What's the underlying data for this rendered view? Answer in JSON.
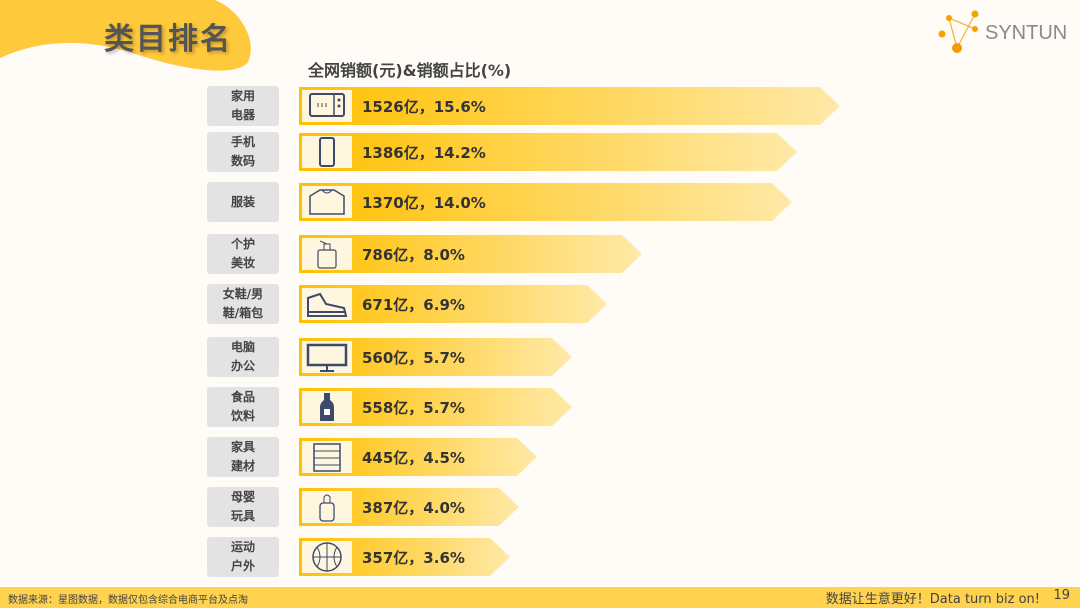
{
  "header": {
    "title": "类目排名",
    "logo_text": "SYNTUN"
  },
  "chart_data": {
    "type": "bar",
    "orientation": "horizontal",
    "title": "全网销额(元)&销额占比(%)",
    "categories": [
      "家用\n电器",
      "手机\n数码",
      "服装",
      "个护\n美妆",
      "女鞋/男\n鞋/箱包",
      "电脑\n办公",
      "食品\n饮料",
      "家具\n建材",
      "母婴\n玩具",
      "运动\n户外"
    ],
    "values": [
      1526,
      1386,
      1370,
      786,
      671,
      560,
      558,
      445,
      387,
      357
    ],
    "unit": "亿",
    "shares": [
      15.6,
      14.2,
      14.0,
      8.0,
      6.9,
      5.7,
      5.7,
      4.5,
      4.0,
      3.6
    ],
    "labels": [
      "1526亿，15.6%",
      "1386亿，14.2%",
      "1370亿，14.0%",
      "786亿，8.0%",
      "671亿，6.9%",
      "560亿，5.7%",
      "558亿，5.7%",
      "445亿，4.5%",
      "387亿，4.0%",
      "357亿，3.6%"
    ],
    "icons": [
      "microwave-icon",
      "phone-icon",
      "sweater-icon",
      "lotion-bottle-icon",
      "sneaker-icon",
      "monitor-icon",
      "drink-bottle-icon",
      "cabinet-icon",
      "baby-bottle-icon",
      "basketball-icon"
    ],
    "colors": {
      "bar_start": "#ffc000",
      "bar_end": "#ffe9a8",
      "icon": "#3d4a6b"
    }
  },
  "footer": {
    "source": "数据来源：星图数据，数据仅包含综合电商平台及点淘",
    "slogan": "数据让生意更好！Data turn biz on!",
    "page": "19"
  }
}
